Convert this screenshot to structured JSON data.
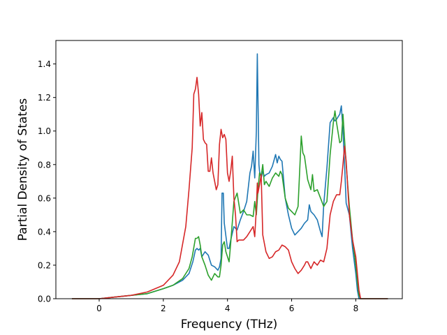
{
  "chart_data": {
    "type": "line",
    "xlabel": "Frequency (THz)",
    "ylabel": "Partial Density of States",
    "xlim": [
      -1.35,
      9.45
    ],
    "ylim": [
      0.0,
      1.54
    ],
    "xticks": [
      0,
      2,
      4,
      6,
      8
    ],
    "yticks": [
      0.0,
      0.2,
      0.4,
      0.6,
      0.8,
      1.0,
      1.2,
      1.4
    ],
    "xtick_labels": [
      "0",
      "2",
      "4",
      "6",
      "8"
    ],
    "ytick_labels": [
      "0.0",
      "0.2",
      "0.4",
      "0.6",
      "0.8",
      "1.0",
      "1.2",
      "1.4"
    ],
    "grid": false,
    "series": [
      {
        "color": "#1f77b4",
        "x": [
          -0.85,
          0,
          0.5,
          1,
          1.5,
          2,
          2.3,
          2.6,
          2.8,
          2.92,
          3.0,
          3.05,
          3.1,
          3.15,
          3.2,
          3.3,
          3.4,
          3.5,
          3.6,
          3.7,
          3.75,
          3.8,
          3.83,
          3.87,
          3.9,
          4.0,
          4.05,
          4.1,
          4.2,
          4.3,
          4.4,
          4.5,
          4.6,
          4.7,
          4.75,
          4.8,
          4.85,
          4.9,
          4.93,
          4.95,
          4.98,
          5.0,
          5.05,
          5.1,
          5.15,
          5.2,
          5.3,
          5.4,
          5.5,
          5.55,
          5.6,
          5.65,
          5.7,
          5.8,
          5.9,
          6.0,
          6.1,
          6.2,
          6.3,
          6.4,
          6.5,
          6.55,
          6.6,
          6.7,
          6.8,
          6.9,
          6.95,
          7.0,
          7.1,
          7.2,
          7.3,
          7.35,
          7.4,
          7.5,
          7.55,
          7.6,
          7.65,
          7.7,
          7.8,
          7.9,
          8.0,
          8.05,
          8.1,
          8.15,
          8.2,
          8.5,
          9.0
        ],
        "y": [
          0,
          0,
          0.01,
          0.02,
          0.03,
          0.06,
          0.08,
          0.11,
          0.15,
          0.22,
          0.29,
          0.3,
          0.29,
          0.3,
          0.25,
          0.28,
          0.26,
          0.2,
          0.19,
          0.17,
          0.19,
          0.24,
          0.63,
          0.63,
          0.45,
          0.3,
          0.3,
          0.35,
          0.43,
          0.41,
          0.47,
          0.52,
          0.58,
          0.75,
          0.79,
          0.88,
          0.72,
          1.0,
          1.46,
          1.2,
          0.8,
          0.76,
          0.72,
          0.76,
          0.73,
          0.74,
          0.75,
          0.79,
          0.86,
          0.81,
          0.85,
          0.83,
          0.82,
          0.6,
          0.5,
          0.42,
          0.38,
          0.4,
          0.42,
          0.45,
          0.47,
          0.56,
          0.52,
          0.5,
          0.47,
          0.4,
          0.37,
          0.56,
          0.78,
          1.05,
          1.08,
          1.06,
          1.07,
          1.1,
          1.15,
          1.0,
          0.8,
          0.57,
          0.5,
          0.3,
          0.15,
          0.05,
          0,
          0,
          0,
          0,
          0
        ]
      },
      {
        "color": "#2ca02c",
        "x": [
          -0.85,
          0,
          0.5,
          1,
          1.5,
          2,
          2.3,
          2.6,
          2.8,
          2.9,
          3.0,
          3.05,
          3.1,
          3.15,
          3.2,
          3.3,
          3.4,
          3.5,
          3.6,
          3.7,
          3.75,
          3.8,
          3.85,
          3.9,
          3.95,
          4.0,
          4.05,
          4.1,
          4.2,
          4.3,
          4.4,
          4.5,
          4.6,
          4.7,
          4.8,
          4.85,
          4.9,
          4.95,
          5.0,
          5.05,
          5.1,
          5.15,
          5.2,
          5.3,
          5.4,
          5.5,
          5.6,
          5.65,
          5.7,
          5.8,
          5.9,
          6.0,
          6.1,
          6.2,
          6.25,
          6.3,
          6.35,
          6.4,
          6.5,
          6.6,
          6.65,
          6.7,
          6.8,
          6.9,
          7.0,
          7.1,
          7.2,
          7.3,
          7.35,
          7.4,
          7.5,
          7.55,
          7.6,
          7.65,
          7.7,
          7.8,
          7.9,
          8.0,
          8.05,
          8.1,
          8.15,
          8.2,
          8.5,
          9.0
        ],
        "y": [
          0,
          0,
          0.01,
          0.02,
          0.03,
          0.06,
          0.08,
          0.12,
          0.18,
          0.25,
          0.36,
          0.36,
          0.37,
          0.32,
          0.25,
          0.2,
          0.14,
          0.11,
          0.15,
          0.13,
          0.13,
          0.2,
          0.32,
          0.34,
          0.28,
          0.25,
          0.22,
          0.33,
          0.58,
          0.63,
          0.51,
          0.53,
          0.5,
          0.5,
          0.49,
          0.58,
          0.5,
          0.65,
          0.75,
          0.73,
          0.8,
          0.68,
          0.7,
          0.67,
          0.72,
          0.75,
          0.73,
          0.76,
          0.74,
          0.6,
          0.54,
          0.52,
          0.5,
          0.55,
          0.76,
          0.97,
          0.87,
          0.85,
          0.71,
          0.65,
          0.74,
          0.64,
          0.65,
          0.6,
          0.55,
          0.58,
          0.86,
          1.05,
          1.12,
          1.05,
          0.93,
          0.94,
          1.1,
          0.95,
          0.8,
          0.55,
          0.35,
          0.2,
          0.1,
          0.02,
          0,
          0,
          0,
          0
        ]
      },
      {
        "color": "#d62728",
        "x": [
          -0.85,
          0,
          0.5,
          1,
          1.5,
          2,
          2.3,
          2.5,
          2.7,
          2.8,
          2.9,
          2.95,
          3.0,
          3.05,
          3.1,
          3.15,
          3.2,
          3.25,
          3.3,
          3.35,
          3.4,
          3.45,
          3.5,
          3.55,
          3.6,
          3.65,
          3.7,
          3.75,
          3.8,
          3.85,
          3.9,
          3.95,
          4.0,
          4.05,
          4.1,
          4.15,
          4.2,
          4.25,
          4.3,
          4.35,
          4.4,
          4.5,
          4.6,
          4.7,
          4.8,
          4.85,
          4.9,
          4.93,
          4.95,
          5.0,
          5.05,
          5.1,
          5.2,
          5.3,
          5.4,
          5.5,
          5.6,
          5.7,
          5.8,
          5.9,
          6.0,
          6.1,
          6.2,
          6.3,
          6.4,
          6.45,
          6.5,
          6.6,
          6.7,
          6.8,
          6.9,
          7.0,
          7.1,
          7.2,
          7.3,
          7.4,
          7.5,
          7.55,
          7.6,
          7.65,
          7.7,
          7.8,
          7.9,
          8.0,
          8.05,
          8.1,
          8.15,
          8.2,
          8.5,
          9.0
        ],
        "y": [
          0,
          0,
          0.01,
          0.02,
          0.04,
          0.08,
          0.14,
          0.22,
          0.43,
          0.65,
          0.9,
          1.22,
          1.25,
          1.32,
          1.22,
          1.03,
          1.11,
          0.95,
          0.93,
          0.92,
          0.76,
          0.76,
          0.84,
          0.75,
          0.7,
          0.65,
          0.68,
          0.92,
          1.01,
          0.96,
          0.98,
          0.95,
          0.75,
          0.7,
          0.76,
          0.85,
          0.6,
          0.5,
          0.34,
          0.35,
          0.35,
          0.35,
          0.37,
          0.4,
          0.43,
          0.37,
          0.54,
          0.69,
          0.63,
          0.68,
          0.74,
          0.38,
          0.28,
          0.24,
          0.25,
          0.28,
          0.29,
          0.32,
          0.31,
          0.29,
          0.22,
          0.18,
          0.15,
          0.17,
          0.2,
          0.22,
          0.22,
          0.18,
          0.22,
          0.2,
          0.23,
          0.22,
          0.3,
          0.5,
          0.58,
          0.62,
          0.62,
          0.7,
          0.8,
          0.91,
          0.82,
          0.5,
          0.35,
          0.25,
          0.15,
          0.05,
          0,
          0,
          0,
          0
        ]
      }
    ]
  }
}
